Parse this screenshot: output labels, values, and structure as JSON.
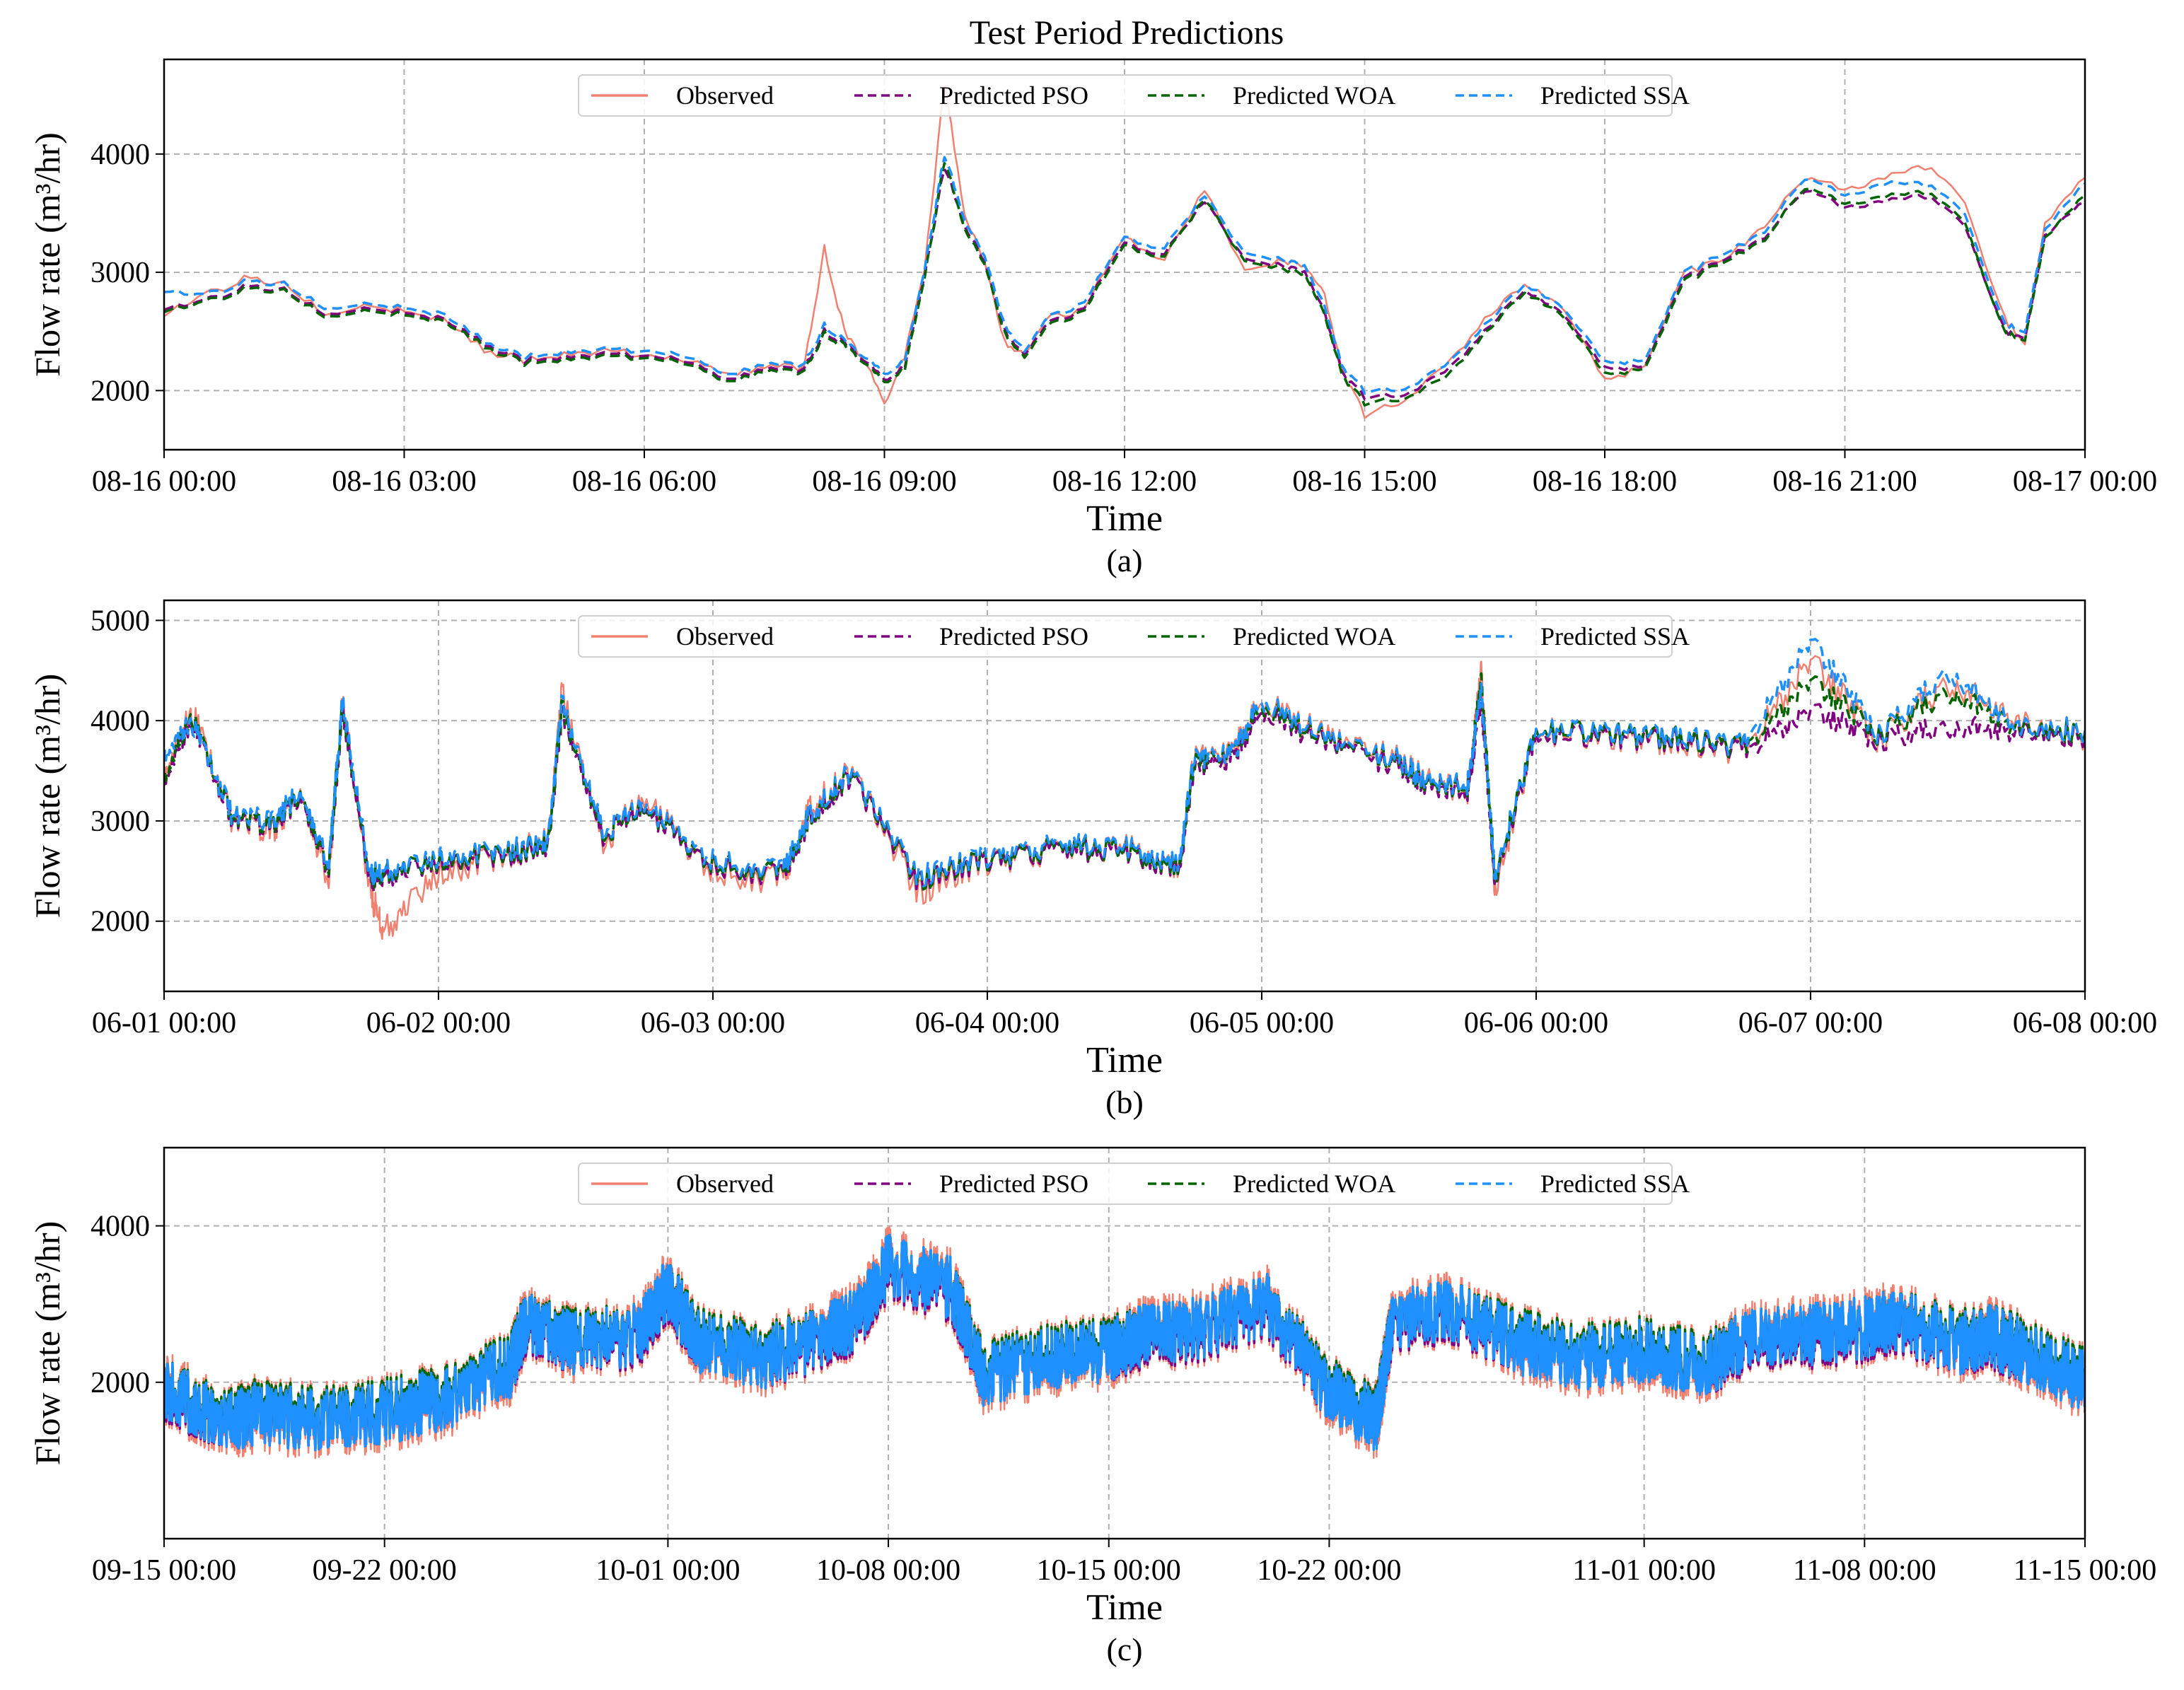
{
  "figure_title": "Test Period Predictions",
  "colors": {
    "observed": "#f08070",
    "pso": "#800080",
    "woa": "#006400",
    "ssa": "#1e90ff",
    "grid": "#b0b0b0",
    "axes": "#000000"
  },
  "legend": [
    "Observed",
    "Predicted PSO",
    "Predicted WOA",
    "Predicted SSA"
  ],
  "chart_data": [
    {
      "type": "line",
      "panel_label": "(a)",
      "title": "Test Period Predictions",
      "xlabel": "Time",
      "ylabel": "Flow rate (m³/hr)",
      "x_ticks": [
        "08-16 00:00",
        "08-16 03:00",
        "08-16 06:00",
        "08-16 09:00",
        "08-16 12:00",
        "08-16 15:00",
        "08-16 18:00",
        "08-16 21:00",
        "08-17 00:00"
      ],
      "x_range": [
        "08-16 00:00",
        "08-17 00:00"
      ],
      "y_ticks": [
        2000,
        3000,
        4000
      ],
      "ylim": [
        1500,
        4800
      ],
      "grid": true,
      "legend_position": "top-center",
      "x_hours": [
        0,
        0.5,
        1,
        1.5,
        2,
        2.5,
        3,
        3.5,
        4,
        4.5,
        5,
        5.5,
        6,
        6.5,
        7,
        7.5,
        8,
        8.25,
        8.5,
        8.75,
        9,
        9.25,
        9.5,
        9.75,
        10,
        10.25,
        10.5,
        10.75,
        11,
        11.5,
        12,
        12.5,
        13,
        13.5,
        14,
        14.25,
        14.5,
        14.75,
        15,
        15.5,
        16,
        16.5,
        17,
        17.5,
        18,
        18.5,
        19,
        19.5,
        20,
        20.5,
        21,
        21.5,
        22,
        22.5,
        23,
        23.25,
        23.5,
        24
      ],
      "series": [
        {
          "name": "Observed",
          "values": [
            2650,
            2800,
            2950,
            2900,
            2650,
            2700,
            2700,
            2600,
            2350,
            2250,
            2300,
            2350,
            2300,
            2250,
            2150,
            2200,
            2200,
            3200,
            2500,
            2250,
            1900,
            2300,
            3000,
            4600,
            3500,
            3100,
            2400,
            2300,
            2600,
            2700,
            3300,
            3100,
            3700,
            3000,
            3100,
            3050,
            2800,
            2100,
            1800,
            1900,
            2200,
            2600,
            2900,
            2700,
            2100,
            2200,
            3000,
            3100,
            3400,
            3800,
            3700,
            3800,
            3900,
            3600,
            2600,
            2400,
            3400,
            3800
          ]
        },
        {
          "name": "Predicted PSO",
          "values": [
            2700,
            2750,
            2880,
            2850,
            2650,
            2680,
            2680,
            2600,
            2400,
            2250,
            2280,
            2320,
            2300,
            2250,
            2100,
            2180,
            2180,
            2500,
            2400,
            2250,
            2100,
            2200,
            2950,
            3900,
            3400,
            3100,
            2500,
            2300,
            2550,
            2700,
            3250,
            3150,
            3600,
            3100,
            3050,
            3000,
            2650,
            2100,
            1950,
            1950,
            2150,
            2500,
            2850,
            2650,
            2200,
            2200,
            2950,
            3100,
            3300,
            3700,
            3550,
            3600,
            3650,
            3400,
            2500,
            2450,
            3300,
            3600
          ]
        },
        {
          "name": "Predicted WOA",
          "values": [
            2680,
            2740,
            2860,
            2840,
            2630,
            2660,
            2660,
            2580,
            2380,
            2230,
            2260,
            2300,
            2280,
            2230,
            2080,
            2160,
            2160,
            2480,
            2380,
            2230,
            2080,
            2180,
            2930,
            3950,
            3380,
            3080,
            2480,
            2280,
            2530,
            2680,
            3230,
            3130,
            3620,
            3080,
            3030,
            2980,
            2630,
            2080,
            1900,
            1920,
            2100,
            2480,
            2830,
            2630,
            2150,
            2180,
            2930,
            3080,
            3280,
            3720,
            3580,
            3640,
            3680,
            3430,
            2480,
            2430,
            3280,
            3650
          ]
        },
        {
          "name": "Predicted SSA",
          "values": [
            2850,
            2800,
            2920,
            2900,
            2700,
            2720,
            2720,
            2640,
            2420,
            2280,
            2320,
            2360,
            2340,
            2290,
            2140,
            2220,
            2220,
            2550,
            2420,
            2280,
            2150,
            2250,
            3000,
            4000,
            3450,
            3150,
            2550,
            2330,
            2600,
            2750,
            3300,
            3200,
            3650,
            3150,
            3100,
            3050,
            2700,
            2150,
            2000,
            2000,
            2200,
            2550,
            2900,
            2700,
            2250,
            2250,
            3000,
            3150,
            3350,
            3800,
            3650,
            3750,
            3750,
            3500,
            2550,
            2500,
            3350,
            3750
          ]
        }
      ]
    },
    {
      "type": "line",
      "panel_label": "(b)",
      "xlabel": "Time",
      "ylabel": "Flow rate (m³/hr)",
      "x_ticks": [
        "06-01 00:00",
        "06-02 00:00",
        "06-03 00:00",
        "06-04 00:00",
        "06-05 00:00",
        "06-06 00:00",
        "06-07 00:00",
        "06-08 00:00"
      ],
      "x_range": [
        "06-01 00:00",
        "06-08 00:00"
      ],
      "y_ticks": [
        2000,
        3000,
        4000,
        5000
      ],
      "ylim": [
        1300,
        5200
      ],
      "grid": true,
      "legend_position": "top-center",
      "x_days": [
        0,
        0.1,
        0.25,
        0.4,
        0.5,
        0.6,
        0.65,
        0.75,
        0.8,
        1.0,
        1.25,
        1.4,
        1.45,
        1.6,
        1.75,
        2.0,
        2.25,
        2.35,
        2.5,
        2.75,
        3.0,
        3.25,
        3.5,
        3.7,
        3.75,
        3.9,
        4.0,
        4.25,
        4.5,
        4.6,
        4.75,
        4.8,
        4.85,
        5.0,
        5.25,
        5.5,
        5.75,
        6.0,
        6.25,
        6.5,
        6.75,
        7.0
      ],
      "series": [
        {
          "name": "Observed",
          "values": [
            3400,
            4100,
            3000,
            2900,
            3300,
            2400,
            4200,
            2300,
            1900,
            2500,
            2650,
            2800,
            4300,
            2800,
            3200,
            2500,
            2400,
            3100,
            3500,
            2300,
            2600,
            2700,
            2750,
            2500,
            3600,
            3700,
            4200,
            3800,
            3600,
            3400,
            3300,
            4500,
            2300,
            3900,
            3850,
            3800,
            3700,
            4600,
            3800,
            4400,
            4000,
            3850
          ]
        },
        {
          "name": "Predicted PSO",
          "values": [
            3350,
            4000,
            3000,
            2950,
            3250,
            2500,
            4100,
            2400,
            2450,
            2600,
            2650,
            2750,
            4100,
            2850,
            3100,
            2550,
            2450,
            3000,
            3450,
            2400,
            2600,
            2700,
            2700,
            2500,
            3500,
            3650,
            4100,
            3750,
            3550,
            3350,
            3300,
            4200,
            2400,
            3850,
            3850,
            3800,
            3700,
            4100,
            3800,
            3950,
            3900,
            3850
          ]
        },
        {
          "name": "Predicted WOA",
          "values": [
            3380,
            4050,
            3020,
            2970,
            3280,
            2520,
            4150,
            2420,
            2470,
            2620,
            2670,
            2770,
            4150,
            2870,
            3130,
            2570,
            2470,
            3030,
            3480,
            2420,
            2620,
            2720,
            2720,
            2520,
            3550,
            3700,
            4150,
            3780,
            3580,
            3380,
            3330,
            4400,
            2420,
            3900,
            3880,
            3830,
            3730,
            4400,
            3850,
            4300,
            3950,
            3880
          ]
        },
        {
          "name": "Predicted SSA",
          "values": [
            3600,
            4000,
            3050,
            3000,
            3300,
            2550,
            4200,
            2450,
            2500,
            2650,
            2700,
            2800,
            4200,
            2900,
            3150,
            2600,
            2500,
            3050,
            3500,
            2450,
            2650,
            2750,
            2750,
            2550,
            3600,
            3700,
            4200,
            3800,
            3600,
            3400,
            3350,
            4300,
            2450,
            3900,
            3900,
            3850,
            3750,
            4800,
            3850,
            4500,
            3950,
            3900
          ]
        }
      ]
    },
    {
      "type": "line",
      "panel_label": "(c)",
      "xlabel": "Time",
      "ylabel": "Flow rate (m³/hr)",
      "x_ticks": [
        "09-15 00:00",
        "09-22 00:00",
        "10-01 00:00",
        "10-08 00:00",
        "10-15 00:00",
        "10-22 00:00",
        "11-01 00:00",
        "11-08 00:00",
        "11-15 00:00"
      ],
      "x_tick_days": [
        0,
        7,
        16,
        23,
        30,
        37,
        47,
        54,
        61
      ],
      "x_range": [
        "09-15 00:00",
        "11-15 00:00"
      ],
      "y_ticks": [
        2000,
        4000
      ],
      "ylim": [
        0,
        5000
      ],
      "grid": true,
      "legend_position": "top-center",
      "x_days": [
        0,
        2,
        3,
        5,
        7,
        9,
        11,
        11.5,
        13,
        15,
        16,
        17,
        19,
        21,
        22,
        23,
        25,
        26,
        28,
        30,
        31,
        33,
        35,
        37,
        38.5,
        39,
        41,
        43,
        45,
        47,
        49,
        50,
        52,
        54,
        55,
        57,
        58,
        59,
        61
      ],
      "series": [
        {
          "name": "Observed",
          "values": [
            1900,
            1500,
            1600,
            1500,
            1600,
            1800,
            2200,
            2800,
            2500,
            2600,
            3200,
            2500,
            2300,
            2600,
            2800,
            3500,
            3200,
            2100,
            2300,
            2400,
            2600,
            2700,
            3000,
            1900,
            1500,
            2800,
            2900,
            2500,
            2300,
            2400,
            2200,
            2500,
            2600,
            2700,
            2800,
            2500,
            2600,
            2400,
            2000
          ]
        },
        {
          "name": "Predicted PSO",
          "values": [
            1850,
            1500,
            1600,
            1500,
            1600,
            1800,
            2200,
            2750,
            2500,
            2550,
            3150,
            2500,
            2300,
            2550,
            2750,
            3450,
            3150,
            2100,
            2300,
            2400,
            2550,
            2650,
            2950,
            1900,
            1550,
            2750,
            2850,
            2500,
            2300,
            2400,
            2200,
            2450,
            2550,
            2650,
            2750,
            2500,
            2550,
            2400,
            2000
          ]
        },
        {
          "name": "Predicted WOA",
          "values": [
            1900,
            1550,
            1650,
            1550,
            1650,
            1850,
            2250,
            2800,
            2550,
            2600,
            3200,
            2550,
            2350,
            2600,
            2800,
            3500,
            3200,
            2150,
            2350,
            2450,
            2600,
            2700,
            3000,
            1950,
            1550,
            2800,
            2900,
            2550,
            2350,
            2450,
            2250,
            2500,
            2600,
            2700,
            2800,
            2550,
            2600,
            2450,
            2050
          ]
        },
        {
          "name": "Predicted SSA",
          "values": [
            1900,
            1500,
            1600,
            1500,
            1600,
            1800,
            2200,
            2800,
            2500,
            2600,
            3200,
            2500,
            2300,
            2600,
            2800,
            3500,
            3200,
            2100,
            2300,
            2400,
            2600,
            2700,
            3000,
            1900,
            1500,
            2800,
            2900,
            2500,
            2300,
            2400,
            2200,
            2500,
            2600,
            2700,
            2800,
            2500,
            2600,
            2400,
            2000
          ]
        }
      ]
    }
  ]
}
